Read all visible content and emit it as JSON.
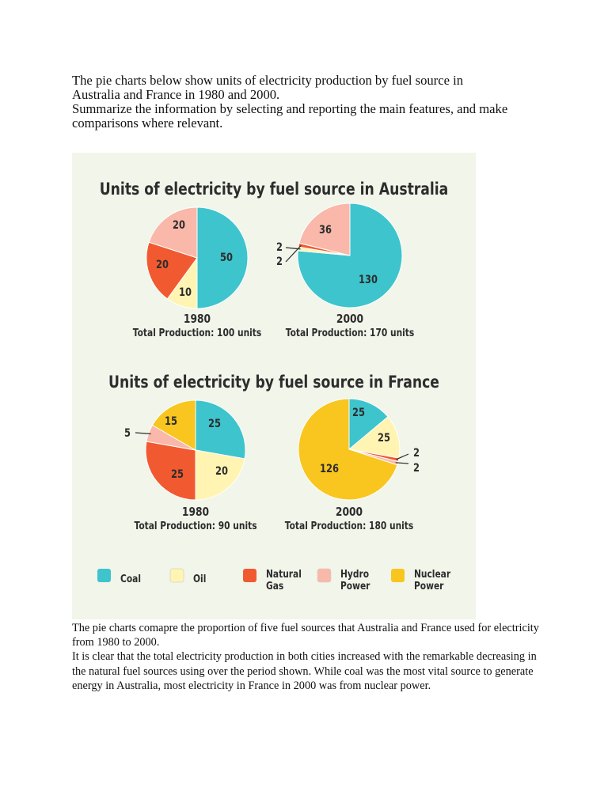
{
  "prompt": {
    "line1": "The pie charts below show units of electricity production by fuel source in",
    "line2": "Australia and France in 1980 and 2000.",
    "line3": "Summarize the information by selecting and reporting the main features, and make",
    "line4": "comparisons where relevant."
  },
  "colors": {
    "background": "#f2f5ea",
    "coal": "#3ec4cd",
    "oil": "#fff4b2",
    "natural_gas": "#f15a30",
    "hydro_power": "#f9b8a9",
    "nuclear_power": "#f8c61e"
  },
  "chart_data": [
    {
      "type": "pie",
      "title": "Units of electricity by fuel source in Australia",
      "label": "1980",
      "caption": "Total Production: 100 units",
      "slices": [
        {
          "name": "Coal",
          "value": 50,
          "label": "50"
        },
        {
          "name": "Oil",
          "value": 10,
          "label": "10"
        },
        {
          "name": "Natural Gas",
          "value": 20,
          "label": "20"
        },
        {
          "name": "Hydro Power",
          "value": 20,
          "label": "20"
        }
      ]
    },
    {
      "type": "pie",
      "title": "Units of electricity by fuel source in Australia",
      "label": "2000",
      "caption": "Total Production: 170 units",
      "slices": [
        {
          "name": "Coal",
          "value": 130,
          "label": "130"
        },
        {
          "name": "Oil",
          "value": 2,
          "label": "2"
        },
        {
          "name": "Natural Gas",
          "value": 2,
          "label": "2"
        },
        {
          "name": "Hydro Power",
          "value": 36,
          "label": "36"
        }
      ]
    },
    {
      "type": "pie",
      "title": "Units of electricity by fuel source in France",
      "label": "1980",
      "caption": "Total Production: 90 units",
      "slices": [
        {
          "name": "Coal",
          "value": 25,
          "label": "25"
        },
        {
          "name": "Oil",
          "value": 20,
          "label": "20"
        },
        {
          "name": "Natural Gas",
          "value": 25,
          "label": "25"
        },
        {
          "name": "Hydro Power",
          "value": 5,
          "label": "5"
        },
        {
          "name": "Nuclear Power",
          "value": 15,
          "label": "15"
        }
      ]
    },
    {
      "type": "pie",
      "title": "Units of electricity by fuel source in France",
      "label": "2000",
      "caption": "Total Production: 180 units",
      "slices": [
        {
          "name": "Coal",
          "value": 25,
          "label": "25"
        },
        {
          "name": "Oil",
          "value": 25,
          "label": "25"
        },
        {
          "name": "Natural Gas",
          "value": 2,
          "label": "2"
        },
        {
          "name": "Hydro Power",
          "value": 2,
          "label": "2"
        },
        {
          "name": "Nuclear Power",
          "value": 126,
          "label": "126"
        }
      ]
    }
  ],
  "legend": [
    {
      "key": "coal",
      "line1": "Coal",
      "line2": ""
    },
    {
      "key": "oil",
      "line1": "Oil",
      "line2": ""
    },
    {
      "key": "natural_gas",
      "line1": "Natural",
      "line2": "Gas"
    },
    {
      "key": "hydro_power",
      "line1": "Hydro",
      "line2": "Power"
    },
    {
      "key": "nuclear_power",
      "line1": "Nuclear",
      "line2": "Power"
    }
  ],
  "answer": {
    "para1": "The pie charts comapre the proportion of five fuel sources that Australia and France used for electricity from 1980 to 2000.",
    "para2": "It is clear that the total electricity production in both cities increased with the remarkable decreasing in the natural fuel sources using over the period shown. While coal was the most vital source to generate energy in Australia, most electricity in France in 2000 was from nuclear power."
  }
}
